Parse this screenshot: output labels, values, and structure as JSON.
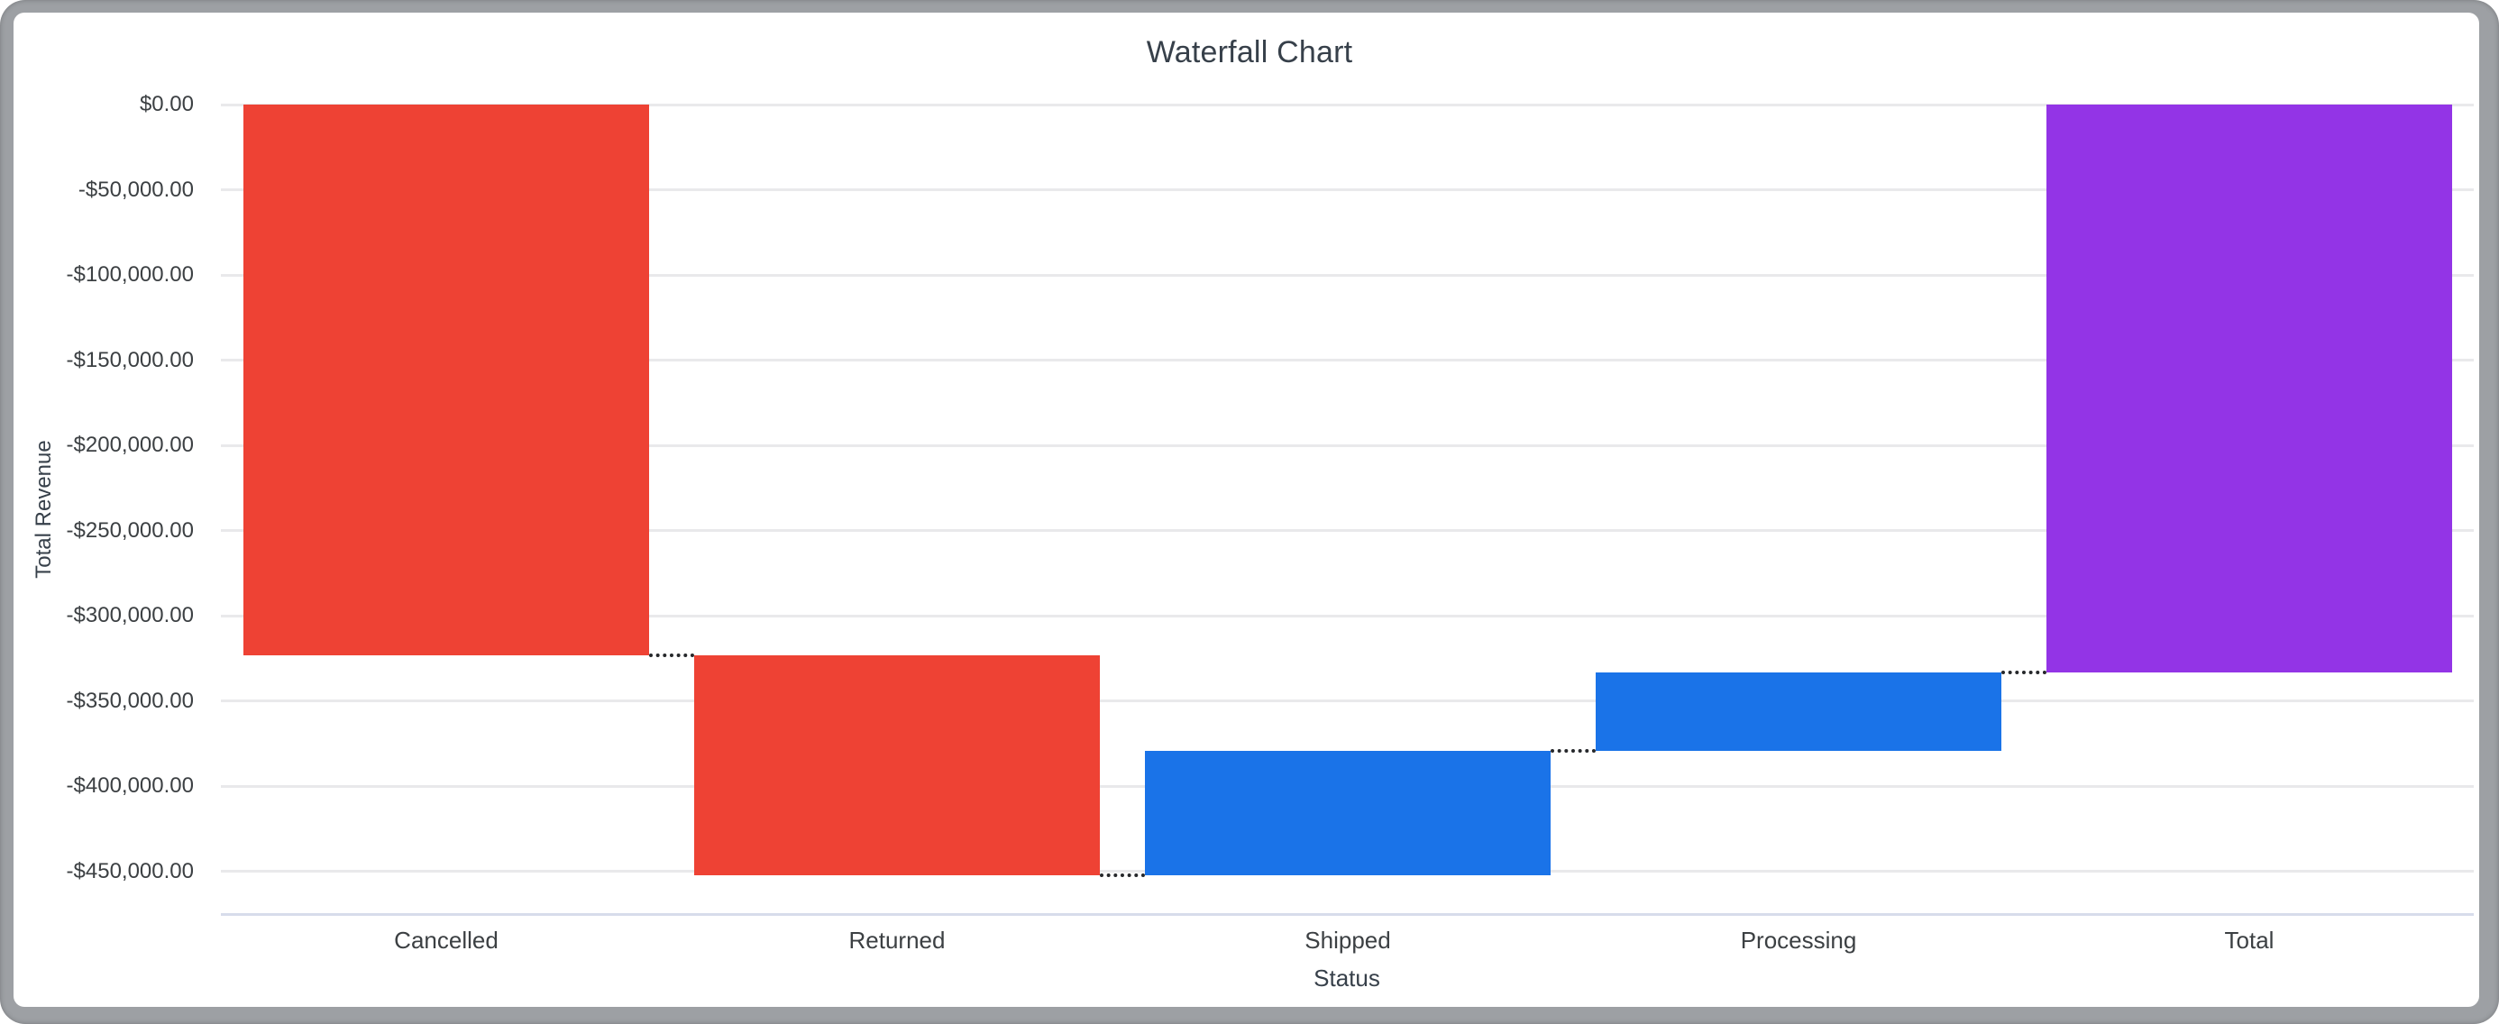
{
  "window": {
    "background": "#ffffff",
    "frame_color": "#9DA0A4",
    "card_color": "#ffffff"
  },
  "chart_data": {
    "type": "bar",
    "subtype": "waterfall",
    "title": "Waterfall Chart",
    "xlabel": "Status",
    "ylabel": "Total Revenue",
    "categories": [
      "Cancelled",
      "Returned",
      "Shipped",
      "Processing",
      "Total"
    ],
    "bars": [
      {
        "label": "Cancelled",
        "start": 0,
        "end": -323000,
        "delta": -323000,
        "role": "decrease"
      },
      {
        "label": "Returned",
        "start": -323000,
        "end": -452500,
        "delta": -129500,
        "role": "decrease"
      },
      {
        "label": "Shipped",
        "start": -452500,
        "end": -379500,
        "delta": 73000,
        "role": "increase"
      },
      {
        "label": "Processing",
        "start": -379500,
        "end": -333500,
        "delta": 46000,
        "role": "increase"
      },
      {
        "label": "Total",
        "start": 0,
        "end": -333500,
        "delta": -333500,
        "role": "total"
      }
    ],
    "y_ticks": [
      {
        "value": 0,
        "label": "$0.00"
      },
      {
        "value": -50000,
        "label": "-$50,000.00"
      },
      {
        "value": -100000,
        "label": "-$100,000.00"
      },
      {
        "value": -150000,
        "label": "-$150,000.00"
      },
      {
        "value": -200000,
        "label": "-$200,000.00"
      },
      {
        "value": -250000,
        "label": "-$250,000.00"
      },
      {
        "value": -300000,
        "label": "-$300,000.00"
      },
      {
        "value": -350000,
        "label": "-$350,000.00"
      },
      {
        "value": -400000,
        "label": "-$400,000.00"
      },
      {
        "value": -450000,
        "label": "-$450,000.00"
      }
    ],
    "ylim": [
      0,
      -475000
    ],
    "grid": "horizontal",
    "legend": "none",
    "connector_style": "dotted",
    "colors": {
      "decrease": "#EE4234",
      "increase": "#1A73E8",
      "total": "#9334E6",
      "gridline": "#E9E9EB",
      "axis_line": "#D7DCEB",
      "text": "#3C4043",
      "title_text": "#37404A"
    }
  }
}
